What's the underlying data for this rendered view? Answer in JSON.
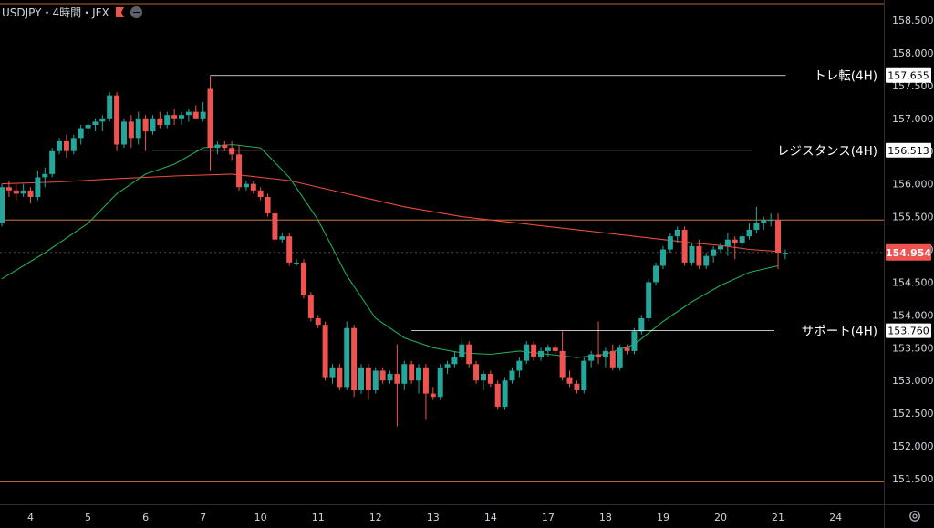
{
  "header": {
    "symbol_text": "USDJPY・4時間・JFX",
    "flag_icon": "flag-icon",
    "collapse_icon": "minus-circle-icon"
  },
  "colors": {
    "background": "#000000",
    "up": "#26a69a",
    "down": "#ef5350",
    "ma_short": "#22ab54",
    "ma_long": "#e84a3f",
    "hline": "#ffffff",
    "border": "#f0883e",
    "price_tag": "#ef5350"
  },
  "price_axis": {
    "ticks": [
      "158.500",
      "158.000",
      "157.500",
      "157.000",
      "156.500",
      "156.000",
      "155.500",
      "155.000",
      "154.500",
      "154.000",
      "153.500",
      "153.000",
      "152.500",
      "152.000",
      "151.500"
    ],
    "current_price": "154.954"
  },
  "time_axis": {
    "labels": [
      "4",
      "5",
      "6",
      "7",
      "10",
      "11",
      "12",
      "13",
      "14",
      "17",
      "18",
      "19",
      "20",
      "21",
      "24"
    ]
  },
  "horizontal_lines": [
    {
      "label": "トレ転(4H)",
      "price_label": "157.655",
      "price": 157.655,
      "start_bar": 29
    },
    {
      "label": "レジスタンス(4H)",
      "price_label": "156.513",
      "price": 156.513,
      "start_bar": 21
    },
    {
      "label": "サポート(4H)",
      "price_label": "153.760",
      "price": 153.76,
      "start_bar": 57
    }
  ],
  "chart_data": {
    "type": "candlestick",
    "title": "USDJPY・4時間・JFX",
    "ylim": [
      151.35,
      158.75
    ],
    "x_tick_bar_index": {
      "4": 4,
      "5": 12,
      "6": 20,
      "7": 28,
      "10": 36,
      "11": 44,
      "12": 52,
      "13": 60,
      "14": 68,
      "17": 76,
      "18": 84,
      "19": 92,
      "20": 100,
      "21": 108,
      "24": 116
    },
    "ohlc": [
      [
        155.4,
        156.0,
        155.35,
        155.95
      ],
      [
        155.95,
        156.05,
        155.8,
        155.9
      ],
      [
        155.9,
        156.0,
        155.75,
        155.85
      ],
      [
        155.85,
        156.0,
        155.8,
        155.9
      ],
      [
        155.9,
        155.95,
        155.7,
        155.8
      ],
      [
        155.8,
        156.2,
        155.75,
        156.1
      ],
      [
        156.1,
        156.25,
        155.95,
        156.15
      ],
      [
        156.15,
        156.55,
        156.1,
        156.5
      ],
      [
        156.5,
        156.7,
        156.45,
        156.65
      ],
      [
        156.65,
        156.75,
        156.4,
        156.5
      ],
      [
        156.5,
        156.75,
        156.45,
        156.7
      ],
      [
        156.7,
        156.9,
        156.6,
        156.85
      ],
      [
        156.85,
        157.0,
        156.75,
        156.9
      ],
      [
        156.9,
        157.0,
        156.8,
        156.95
      ],
      [
        156.95,
        157.05,
        156.8,
        157.0
      ],
      [
        157.0,
        157.4,
        156.95,
        157.35
      ],
      [
        157.35,
        157.4,
        156.5,
        156.6
      ],
      [
        156.6,
        157.0,
        156.55,
        156.95
      ],
      [
        156.95,
        157.05,
        156.55,
        156.7
      ],
      [
        156.7,
        157.1,
        156.6,
        157.0
      ],
      [
        157.0,
        157.05,
        156.5,
        156.8
      ],
      [
        156.8,
        157.05,
        156.75,
        157.0
      ],
      [
        157.0,
        157.1,
        156.85,
        156.9
      ],
      [
        156.9,
        157.1,
        156.85,
        157.05
      ],
      [
        157.05,
        157.15,
        156.9,
        157.0
      ],
      [
        157.0,
        157.1,
        156.9,
        157.05
      ],
      [
        157.05,
        157.15,
        156.95,
        157.1
      ],
      [
        157.1,
        157.2,
        157.0,
        157.0
      ],
      [
        157.0,
        157.25,
        156.95,
        157.1
      ],
      [
        157.45,
        157.65,
        156.2,
        156.55
      ],
      [
        156.55,
        156.65,
        156.45,
        156.6
      ],
      [
        156.6,
        156.65,
        156.5,
        156.55
      ],
      [
        156.55,
        156.65,
        156.35,
        156.45
      ],
      [
        156.45,
        156.6,
        155.9,
        155.95
      ],
      [
        155.95,
        156.05,
        155.9,
        156.0
      ],
      [
        156.0,
        156.05,
        155.85,
        155.9
      ],
      [
        155.9,
        155.95,
        155.75,
        155.8
      ],
      [
        155.8,
        155.85,
        155.5,
        155.55
      ],
      [
        155.55,
        155.6,
        155.1,
        155.15
      ],
      [
        155.15,
        155.25,
        155.1,
        155.2
      ],
      [
        155.2,
        155.25,
        154.75,
        154.8
      ],
      [
        154.8,
        154.85,
        154.75,
        154.8
      ],
      [
        154.8,
        154.85,
        154.25,
        154.3
      ],
      [
        154.3,
        154.35,
        153.9,
        153.95
      ],
      [
        153.95,
        154.0,
        153.8,
        153.85
      ],
      [
        153.85,
        153.9,
        153.0,
        153.05
      ],
      [
        153.05,
        153.25,
        152.95,
        153.2
      ],
      [
        153.2,
        153.25,
        152.85,
        152.9
      ],
      [
        152.9,
        153.9,
        152.85,
        153.8
      ],
      [
        153.8,
        153.85,
        152.75,
        152.85
      ],
      [
        152.85,
        153.25,
        152.8,
        153.2
      ],
      [
        153.2,
        153.25,
        152.7,
        152.85
      ],
      [
        152.85,
        153.2,
        152.8,
        153.15
      ],
      [
        153.15,
        153.2,
        152.95,
        153.0
      ],
      [
        153.0,
        153.15,
        152.95,
        153.1
      ],
      [
        153.1,
        153.55,
        152.3,
        152.95
      ],
      [
        152.95,
        153.3,
        152.85,
        153.25
      ],
      [
        153.25,
        153.3,
        152.95,
        153.0
      ],
      [
        153.0,
        153.25,
        152.8,
        153.2
      ],
      [
        153.2,
        153.25,
        152.4,
        152.8
      ],
      [
        152.8,
        152.9,
        152.7,
        152.75
      ],
      [
        152.75,
        153.25,
        152.7,
        153.2
      ],
      [
        153.2,
        153.3,
        153.1,
        153.25
      ],
      [
        153.25,
        153.45,
        153.2,
        153.35
      ],
      [
        153.35,
        153.65,
        153.3,
        153.55
      ],
      [
        153.55,
        153.6,
        153.2,
        153.25
      ],
      [
        153.25,
        153.3,
        152.95,
        153.0
      ],
      [
        153.0,
        153.15,
        152.85,
        153.1
      ],
      [
        153.1,
        153.15,
        152.9,
        152.95
      ],
      [
        152.95,
        153.0,
        152.55,
        152.6
      ],
      [
        152.6,
        153.05,
        152.55,
        153.0
      ],
      [
        153.0,
        153.2,
        152.95,
        153.15
      ],
      [
        153.15,
        153.35,
        153.05,
        153.3
      ],
      [
        153.3,
        153.6,
        153.25,
        153.55
      ],
      [
        153.55,
        153.6,
        153.3,
        153.35
      ],
      [
        153.35,
        153.5,
        153.3,
        153.45
      ],
      [
        153.45,
        153.55,
        153.35,
        153.5
      ],
      [
        153.5,
        153.55,
        153.4,
        153.45
      ],
      [
        153.45,
        153.75,
        153.0,
        153.05
      ],
      [
        153.05,
        153.15,
        152.9,
        152.95
      ],
      [
        152.95,
        153.0,
        152.8,
        152.85
      ],
      [
        152.85,
        153.35,
        152.8,
        153.3
      ],
      [
        153.3,
        153.45,
        153.2,
        153.4
      ],
      [
        153.4,
        153.9,
        153.25,
        153.35
      ],
      [
        153.35,
        153.5,
        153.2,
        153.45
      ],
      [
        153.45,
        153.55,
        153.15,
        153.2
      ],
      [
        153.2,
        153.55,
        153.15,
        153.5
      ],
      [
        153.5,
        153.55,
        153.4,
        153.45
      ],
      [
        153.45,
        153.8,
        153.4,
        153.75
      ],
      [
        153.75,
        154.0,
        153.7,
        153.95
      ],
      [
        153.95,
        154.55,
        153.9,
        154.5
      ],
      [
        154.5,
        154.8,
        154.45,
        154.75
      ],
      [
        154.75,
        155.05,
        154.7,
        155.0
      ],
      [
        155.0,
        155.25,
        154.95,
        155.2
      ],
      [
        155.2,
        155.35,
        155.1,
        155.3
      ],
      [
        155.3,
        155.35,
        154.75,
        154.8
      ],
      [
        154.8,
        155.1,
        154.75,
        155.05
      ],
      [
        155.05,
        155.15,
        154.7,
        154.75
      ],
      [
        154.75,
        154.95,
        154.7,
        154.9
      ],
      [
        154.9,
        155.05,
        154.8,
        155.0
      ],
      [
        155.0,
        155.1,
        154.95,
        155.05
      ],
      [
        155.05,
        155.25,
        154.9,
        155.15
      ],
      [
        155.15,
        155.2,
        154.85,
        155.1
      ],
      [
        155.1,
        155.25,
        155.0,
        155.2
      ],
      [
        155.2,
        155.4,
        155.15,
        155.3
      ],
      [
        155.3,
        155.65,
        155.25,
        155.4
      ],
      [
        155.4,
        155.5,
        155.3,
        155.45
      ],
      [
        155.45,
        155.55,
        155.35,
        155.45
      ],
      [
        155.45,
        155.55,
        154.7,
        154.95
      ],
      [
        154.95,
        155.0,
        154.85,
        154.95
      ]
    ],
    "ma_short": [
      [
        0,
        154.55
      ],
      [
        6,
        154.95
      ],
      [
        12,
        155.4
      ],
      [
        16,
        155.85
      ],
      [
        20,
        156.15
      ],
      [
        24,
        156.3
      ],
      [
        28,
        156.55
      ],
      [
        32,
        156.6
      ],
      [
        36,
        156.55
      ],
      [
        40,
        156.1
      ],
      [
        44,
        155.45
      ],
      [
        48,
        154.6
      ],
      [
        52,
        153.95
      ],
      [
        56,
        153.65
      ],
      [
        60,
        153.5
      ],
      [
        64,
        153.42
      ],
      [
        68,
        153.4
      ],
      [
        72,
        153.45
      ],
      [
        76,
        153.4
      ],
      [
        80,
        153.35
      ],
      [
        84,
        153.4
      ],
      [
        88,
        153.55
      ],
      [
        92,
        153.9
      ],
      [
        96,
        154.2
      ],
      [
        100,
        154.45
      ],
      [
        104,
        154.65
      ],
      [
        108,
        154.75
      ]
    ],
    "ma_long": [
      [
        0,
        156.0
      ],
      [
        8,
        156.03
      ],
      [
        16,
        156.08
      ],
      [
        24,
        156.12
      ],
      [
        32,
        156.15
      ],
      [
        40,
        156.05
      ],
      [
        48,
        155.85
      ],
      [
        56,
        155.65
      ],
      [
        64,
        155.5
      ],
      [
        72,
        155.4
      ],
      [
        80,
        155.3
      ],
      [
        88,
        155.2
      ],
      [
        96,
        155.1
      ],
      [
        100,
        155.06
      ],
      [
        104,
        155.0
      ],
      [
        108,
        154.97
      ]
    ],
    "border_lines_price": [
      158.75,
      155.45,
      151.45
    ]
  }
}
